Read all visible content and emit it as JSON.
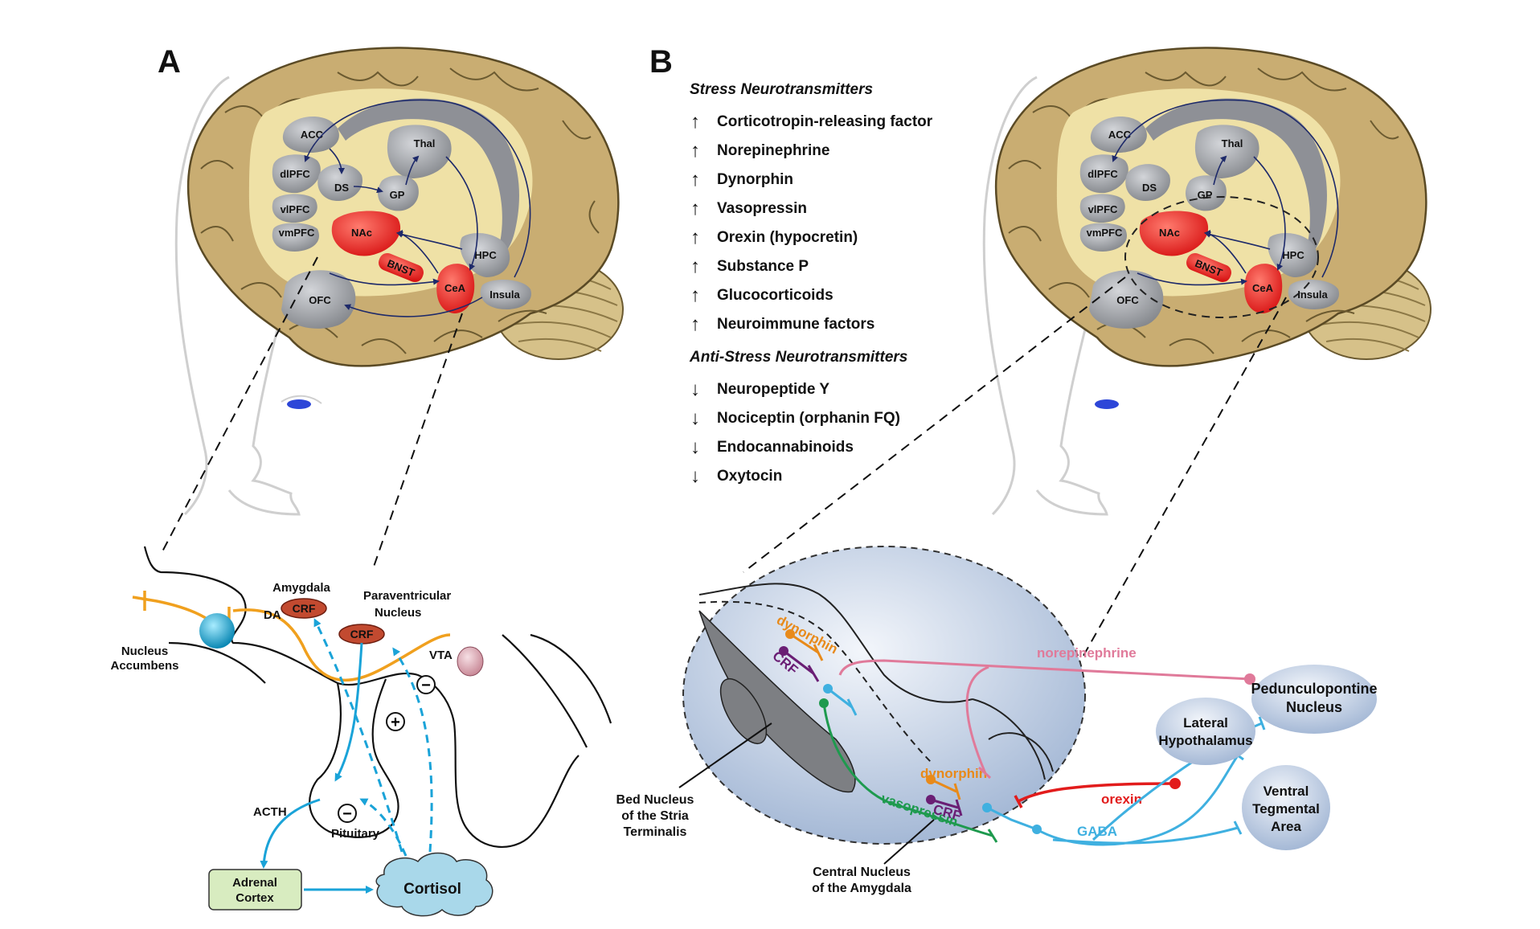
{
  "panel_a": {
    "letter": "A",
    "brain_regions": {
      "acc": "ACC",
      "dlpfc": "dlPFC",
      "vlpfc": "vlPFC",
      "vmpfc": "vmPFC",
      "ds": "DS",
      "gp": "GP",
      "thal": "Thal",
      "nac": "NAc",
      "bnst": "BNST",
      "cea": "CeA",
      "hpc": "HPC",
      "insula": "Insula",
      "ofc": "OFC"
    },
    "hpa": {
      "amygdala": "Amygdala",
      "crf": "CRF",
      "pvn_line1": "Paraventricular",
      "pvn_line2": "Nucleus",
      "nac_line1": "Nucleus",
      "nac_line2": "Accumbens",
      "da": "DA",
      "vta": "VTA",
      "acth": "ACTH",
      "pituitary": "Pituitary",
      "adrenal_line1": "Adrenal",
      "adrenal_line2": "Cortex",
      "cortisol": "Cortisol",
      "plus": "+",
      "minus": "−"
    }
  },
  "panel_b": {
    "letter": "B",
    "stress_heading": "Stress Neurotransmitters",
    "up_arrow": "↑",
    "down_arrow": "↓",
    "stress_items": [
      "Corticotropin-releasing factor",
      "Norepinephrine",
      "Dynorphin",
      "Vasopressin",
      "Orexin (hypocretin)",
      "Substance P",
      "Glucocorticoids",
      "Neuroimmune factors"
    ],
    "anti_heading": "Anti-Stress Neurotransmitters",
    "anti_items": [
      "Neuropeptide Y",
      "Nociceptin (orphanin FQ)",
      "Endocannabinoids",
      "Oxytocin"
    ],
    "circuit": {
      "dynorphin": "dynorphin",
      "crf": "CRF",
      "norepinephrine": "norepinephrine",
      "orexin": "orexin",
      "gaba": "GABA",
      "vasopressin": "vasopressin",
      "ppn_line1": "Pedunculopontine",
      "ppn_line2": "Nucleus",
      "lh_line1": "Lateral",
      "lh_line2": "Hypothalamus",
      "vta_line1": "Ventral",
      "vta_line2": "Tegmental",
      "vta_line3": "Area",
      "bnst_line1": "Bed Nucleus",
      "bnst_line2": "of the Stria",
      "bnst_line3": "Terminalis",
      "cea_line1": "Central Nucleus",
      "cea_line2": "of the Amygdala"
    }
  },
  "colors": {
    "brain": "#c9ad72",
    "brain_inner": "#efe1a6",
    "region_gray": "#9c9ea3",
    "region_red": "#e82323",
    "orange": "#e88a1a",
    "purple": "#6a1e74",
    "cyan": "#3fb0e0",
    "green": "#1e9a4e",
    "pink": "#e07a9a",
    "red": "#e21c1c",
    "cortisol": "#a9d8ea",
    "adrenal": "#d8ecc0"
  }
}
